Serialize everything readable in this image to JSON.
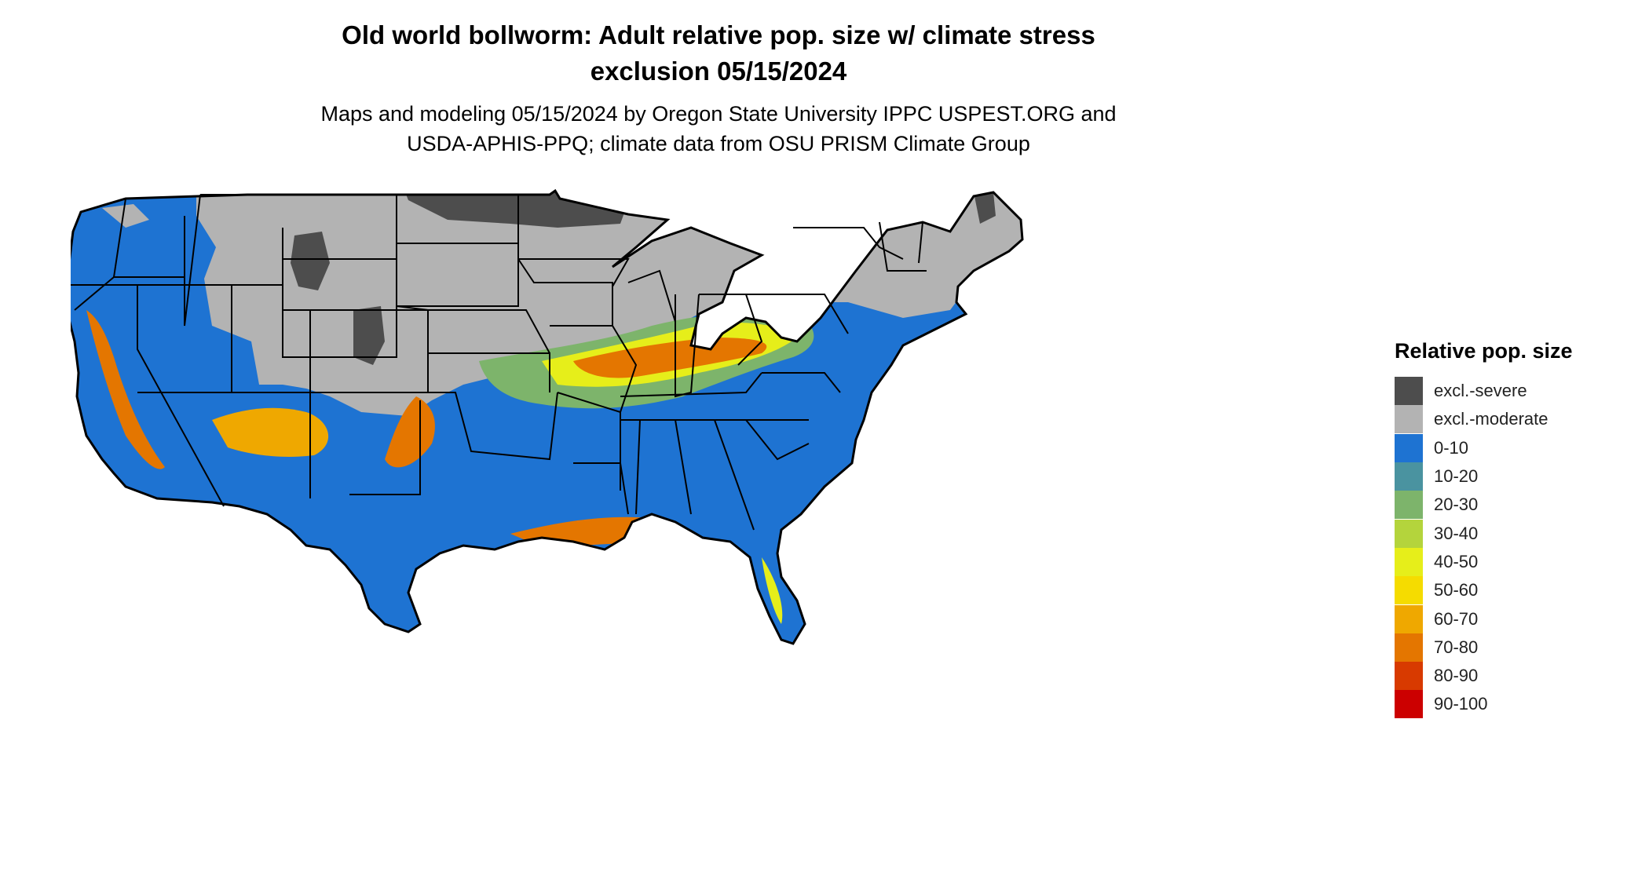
{
  "title": {
    "line1": "Old world bollworm: Adult relative pop. size w/ climate stress",
    "line2": "exclusion 05/15/2024"
  },
  "subtitle": {
    "line1": "Maps and modeling 05/15/2024 by Oregon State University IPPC USPEST.ORG and",
    "line2": "USDA-APHIS-PPQ; climate data from OSU PRISM Climate Group"
  },
  "legend": {
    "title": "Relative pop. size",
    "items": [
      {
        "label": "excl.-severe",
        "color": "#4d4d4d"
      },
      {
        "label": "excl.-moderate",
        "color": "#b3b3b3"
      },
      {
        "label": "0-10",
        "color": "#1e73d2"
      },
      {
        "label": "10-20",
        "color": "#4a93a0"
      },
      {
        "label": "20-30",
        "color": "#7db46b"
      },
      {
        "label": "30-40",
        "color": "#b4d43c"
      },
      {
        "label": "40-50",
        "color": "#e6ee1a"
      },
      {
        "label": "50-60",
        "color": "#f5dc00"
      },
      {
        "label": "60-70",
        "color": "#efa800"
      },
      {
        "label": "70-80",
        "color": "#e47600"
      },
      {
        "label": "80-90",
        "color": "#d83a00"
      },
      {
        "label": "90-100",
        "color": "#cc0000"
      }
    ]
  }
}
